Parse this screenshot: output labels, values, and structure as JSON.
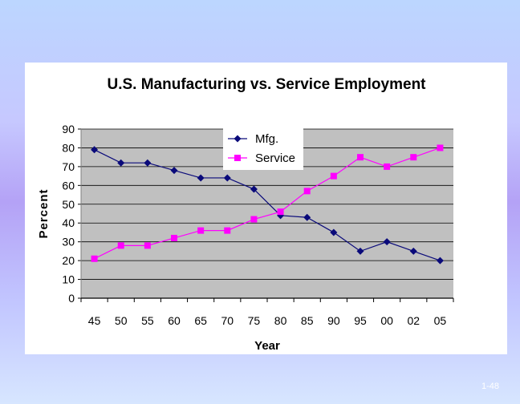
{
  "slide": {
    "page_number": "1-48",
    "background_color": "#c4c8ff"
  },
  "chart_data": {
    "type": "line",
    "title": "U.S. Manufacturing vs. Service Employment",
    "xlabel": "Year",
    "ylabel": "Percent",
    "categories": [
      "45",
      "50",
      "55",
      "60",
      "65",
      "70",
      "75",
      "80",
      "85",
      "90",
      "95",
      "00",
      "02",
      "05"
    ],
    "ylim": [
      0,
      90
    ],
    "yticks": [
      0,
      10,
      20,
      30,
      40,
      50,
      60,
      70,
      80,
      90
    ],
    "grid": true,
    "legend_position": "top-center",
    "plot_background": "#c0c0c0",
    "series": [
      {
        "name": "Mfg.",
        "color": "#0a0a7a",
        "marker": "diamond",
        "values": [
          79,
          72,
          72,
          68,
          64,
          64,
          58,
          44,
          43,
          35,
          25,
          30,
          25,
          20
        ]
      },
      {
        "name": "Service",
        "color": "#ff00ff",
        "marker": "square",
        "values": [
          21,
          28,
          28,
          32,
          36,
          36,
          42,
          46,
          57,
          65,
          75,
          70,
          75,
          80
        ]
      }
    ]
  }
}
